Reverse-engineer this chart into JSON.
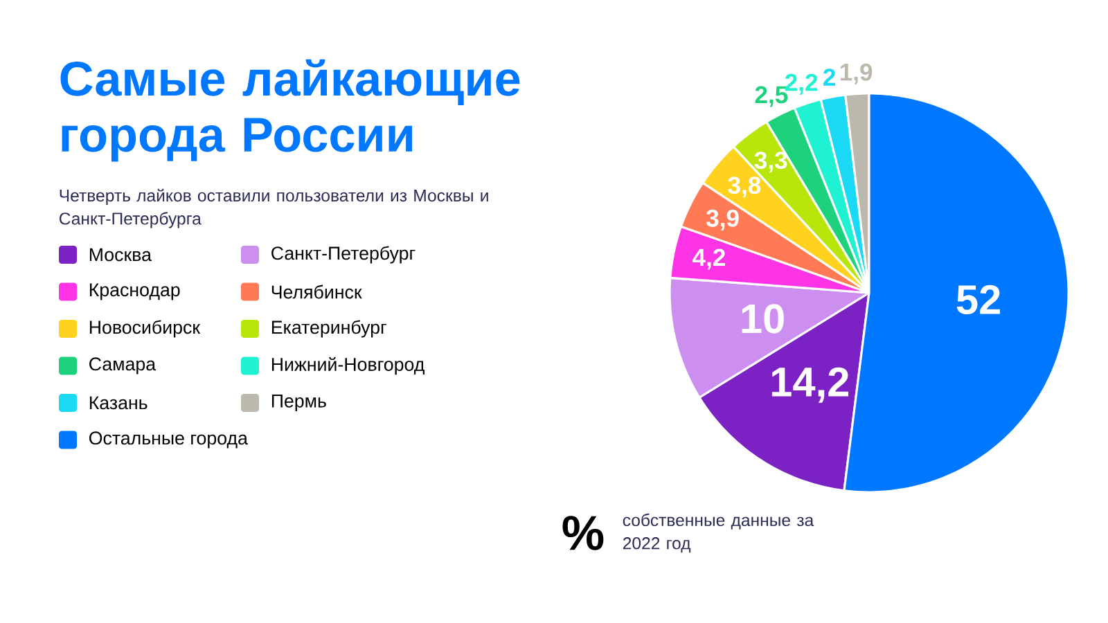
{
  "chart_data": {
    "type": "pie",
    "title": "Самые лайкающие города России",
    "subtitle": "Четверть лайков оставили пользователи из Москвы и Санкт-Петербурга",
    "categories": [
      "Москва",
      "Санкт-Петербург",
      "Краснодар",
      "Челябинск",
      "Новосибирск",
      "Екатеринбург",
      "Самара",
      "Нижний-Новгород",
      "Казань",
      "Пермь",
      "Остальные города"
    ],
    "values": [
      14.2,
      10,
      4.2,
      3.9,
      3.8,
      3.3,
      2.5,
      2.2,
      2,
      1.9,
      52
    ],
    "value_labels": [
      "14,2",
      "10",
      "4,2",
      "3,9",
      "3,8",
      "3,3",
      "2,5",
      "2,2",
      "2",
      "1,9",
      "52"
    ],
    "colors": [
      "#7c22c4",
      "#cc8ff0",
      "#ff33e6",
      "#ff7a55",
      "#ffd21f",
      "#b8e60a",
      "#1ed17c",
      "#1ff2d2",
      "#1ad9f5",
      "#bdb8ad",
      "#0077ff"
    ],
    "legend": "left",
    "annotations": [
      "%",
      "собственные данные за 2022 год"
    ]
  }
}
